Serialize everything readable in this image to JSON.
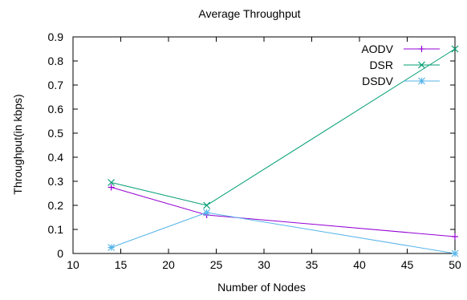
{
  "chart_data": {
    "type": "line",
    "title": "Average Throughput",
    "xlabel": "Number of Nodes",
    "ylabel": "Throughput(in kbps)",
    "xlim": [
      10,
      50
    ],
    "ylim": [
      0,
      0.9
    ],
    "x_ticks": [
      "10",
      "15",
      "20",
      "25",
      "30",
      "35",
      "40",
      "45",
      "50"
    ],
    "y_ticks": [
      "0",
      "0.1",
      "0.2",
      "0.3",
      "0.4",
      "0.5",
      "0.6",
      "0.7",
      "0.8",
      "0.9"
    ],
    "grid": false,
    "legend_position": "top-right",
    "series": [
      {
        "name": "AODV",
        "color": "#9400d3",
        "marker": "plus",
        "x": [
          14,
          24,
          50
        ],
        "y": [
          0.275,
          0.16,
          0.07
        ]
      },
      {
        "name": "DSR",
        "color": "#009e73",
        "marker": "cross",
        "x": [
          14,
          24,
          50
        ],
        "y": [
          0.295,
          0.2,
          0.85
        ]
      },
      {
        "name": "DSDV",
        "color": "#56b4e9",
        "marker": "star",
        "x": [
          14,
          24,
          50
        ],
        "y": [
          0.025,
          0.17,
          0.0
        ]
      }
    ]
  }
}
